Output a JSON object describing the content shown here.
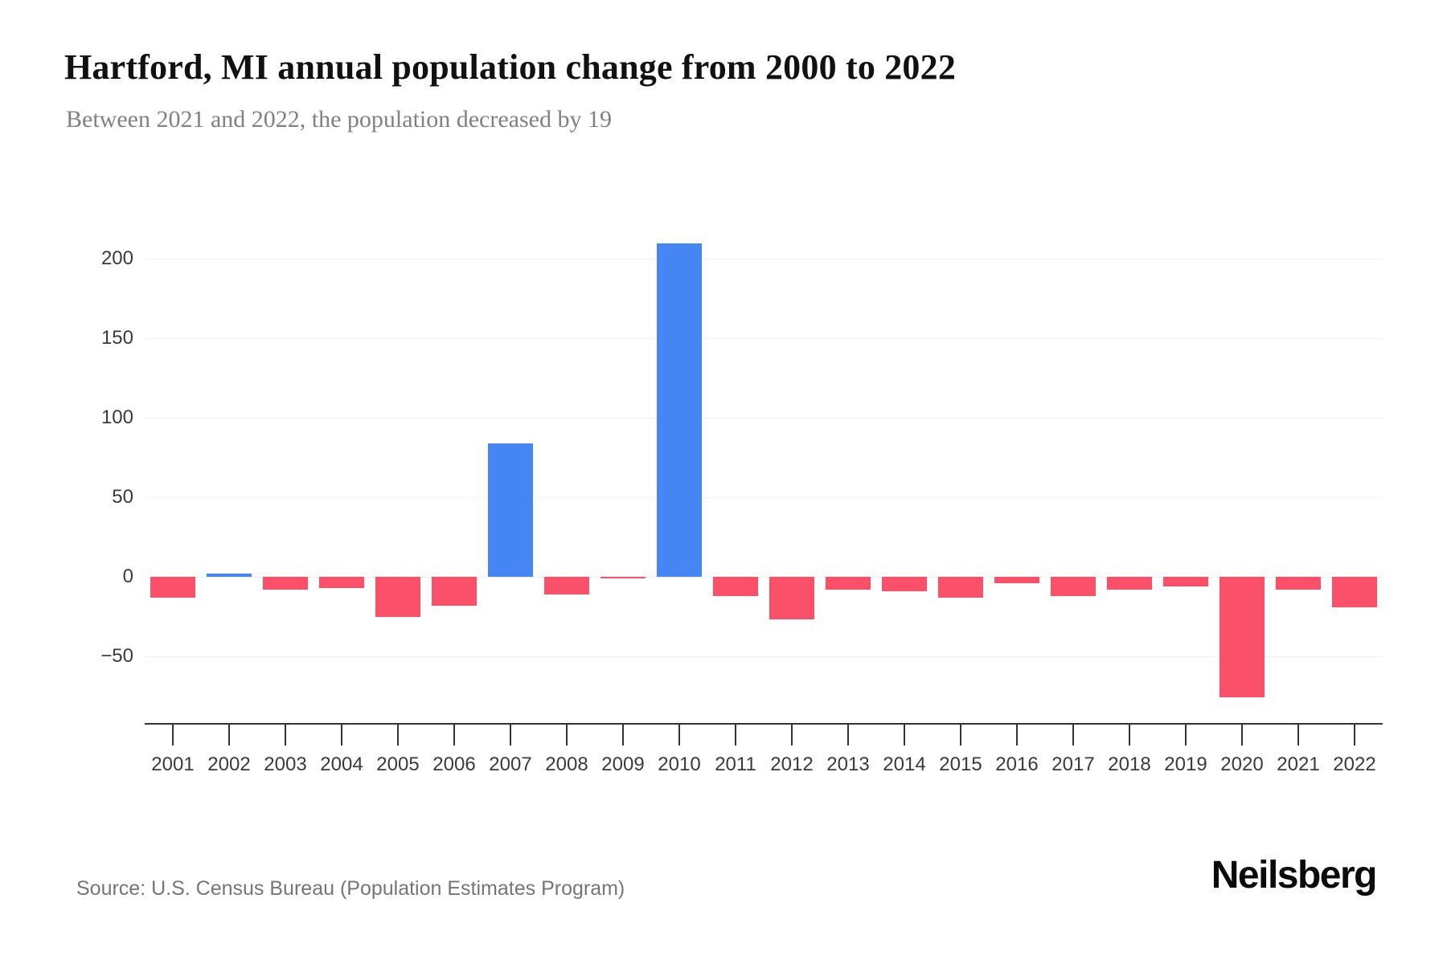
{
  "header": {
    "title": "Hartford, MI annual population change from 2000 to 2022",
    "subtitle": "Between 2021 and 2022, the population decreased by 19"
  },
  "chart_data": {
    "type": "bar",
    "title": "Hartford, MI annual population change from 2000 to 2022",
    "categories": [
      "2001",
      "2002",
      "2003",
      "2004",
      "2005",
      "2006",
      "2007",
      "2008",
      "2009",
      "2010",
      "2011",
      "2012",
      "2013",
      "2014",
      "2015",
      "2016",
      "2017",
      "2018",
      "2019",
      "2020",
      "2021",
      "2022"
    ],
    "values": [
      -13,
      2,
      -8,
      -7,
      -25,
      -18,
      84,
      -11,
      -1,
      210,
      -12,
      -27,
      -8,
      -9,
      -13,
      -4,
      -12,
      -8,
      -6,
      -76,
      -8,
      -19
    ],
    "series_name": "Annual population change",
    "xlabel": "",
    "ylabel": "",
    "yticks": [
      200,
      150,
      100,
      50,
      0,
      -50
    ],
    "ytick_labels": [
      "200",
      "150",
      "100",
      "50",
      "0",
      "−50"
    ],
    "ylim": [
      -92,
      234
    ],
    "grid": true,
    "legend": false,
    "colors": {
      "positive": "#4585f4",
      "negative": "#fa5168",
      "gridline": "#efefef",
      "axis": "#333333",
      "tick_label": "#3a3a3a"
    }
  },
  "footer": {
    "source": "Source: U.S. Census Bureau (Population Estimates Program)",
    "logo": "Neilsberg"
  }
}
